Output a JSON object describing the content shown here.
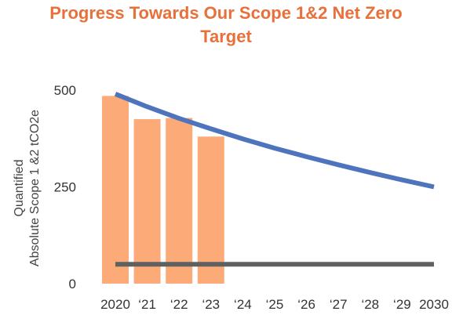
{
  "chart_data": {
    "type": "bar",
    "title_lines": [
      "Progress Towards Our Scope 1&2 Net Zero",
      "Target"
    ],
    "ylabel_lines": [
      "Quantified",
      "Absolute Scope 1 &2   tCO2e"
    ],
    "categories": [
      "2020",
      "‘21",
      "‘22",
      "‘23",
      "‘24",
      "‘25",
      "‘26",
      "‘27",
      "‘28",
      "‘29",
      "2030"
    ],
    "ylim": [
      0,
      500
    ],
    "yticks": [
      0,
      250,
      500
    ],
    "grid": false,
    "series": [
      {
        "kind": "bar",
        "values": [
          485,
          425,
          428,
          380,
          null,
          null,
          null,
          null,
          null,
          null,
          null
        ],
        "color": "#fcab78"
      },
      {
        "kind": "line",
        "values": [
          490,
          457,
          427,
          400,
          374,
          350,
          328,
          307,
          287,
          268,
          250
        ],
        "color": "#4f74be"
      },
      {
        "kind": "line",
        "values": [
          50,
          50,
          50,
          50,
          50,
          50,
          50,
          50,
          50,
          50,
          50
        ],
        "color": "#606060"
      }
    ]
  }
}
